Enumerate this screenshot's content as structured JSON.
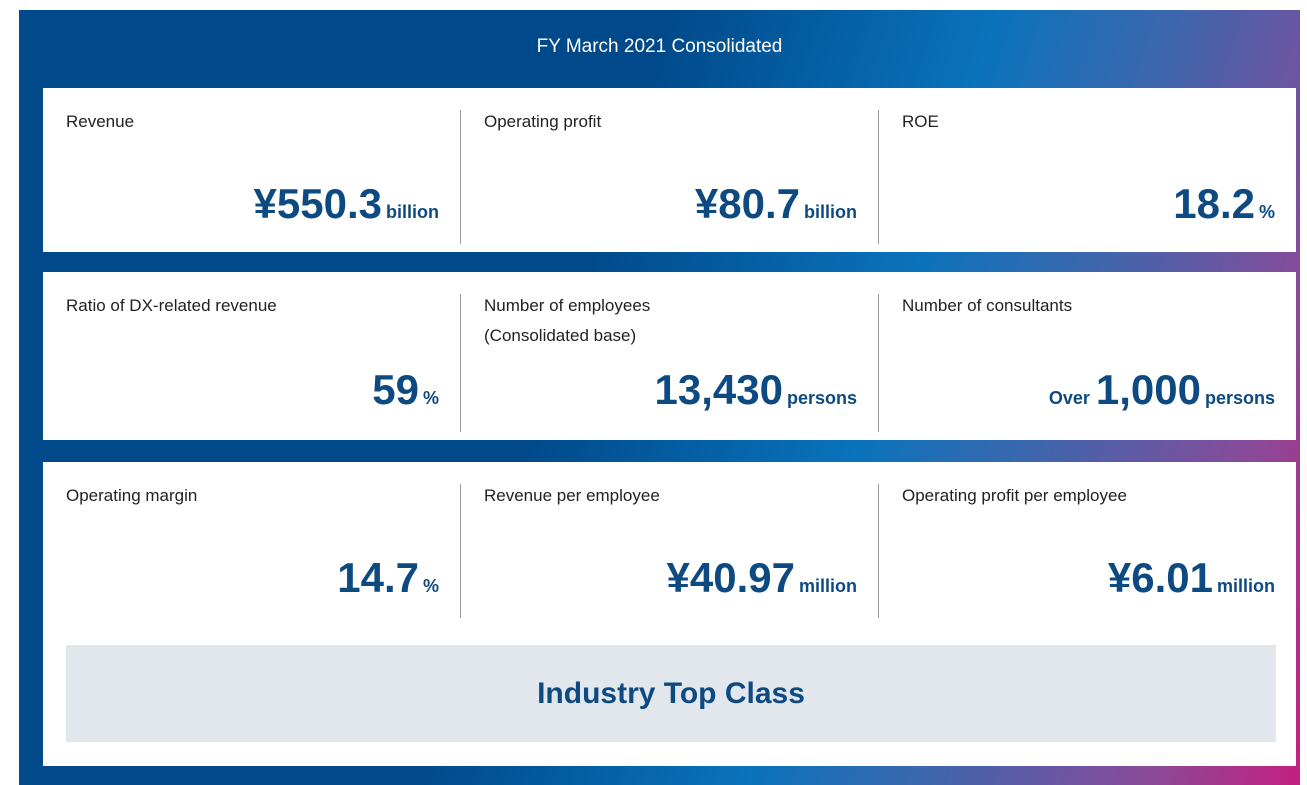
{
  "header": {
    "title": "FY March 2021 Consolidated"
  },
  "rows": [
    [
      {
        "label": "Revenue",
        "value": "¥550.3",
        "unit": "billion"
      },
      {
        "label": "Operating profit",
        "value": "¥80.7",
        "unit": "billion"
      },
      {
        "label": "ROE",
        "value": "18.2",
        "unit": "%"
      }
    ],
    [
      {
        "label": "Ratio of DX-related revenue",
        "value": "59",
        "unit": "%"
      },
      {
        "label": "Number of employees",
        "sublabel": "(Consolidated base)",
        "value": "13,430",
        "unit": "persons"
      },
      {
        "label": "Number of consultants",
        "prefix": "Over",
        "value": "1,000",
        "unit": "persons"
      }
    ],
    [
      {
        "label": "Operating margin",
        "value": "14.7",
        "unit": "%"
      },
      {
        "label": "Revenue per employee",
        "value": "¥40.97",
        "unit": "million"
      },
      {
        "label": "Operating profit per employee",
        "value": "¥6.01",
        "unit": "million"
      }
    ]
  ],
  "banner": "Industry Top Class"
}
